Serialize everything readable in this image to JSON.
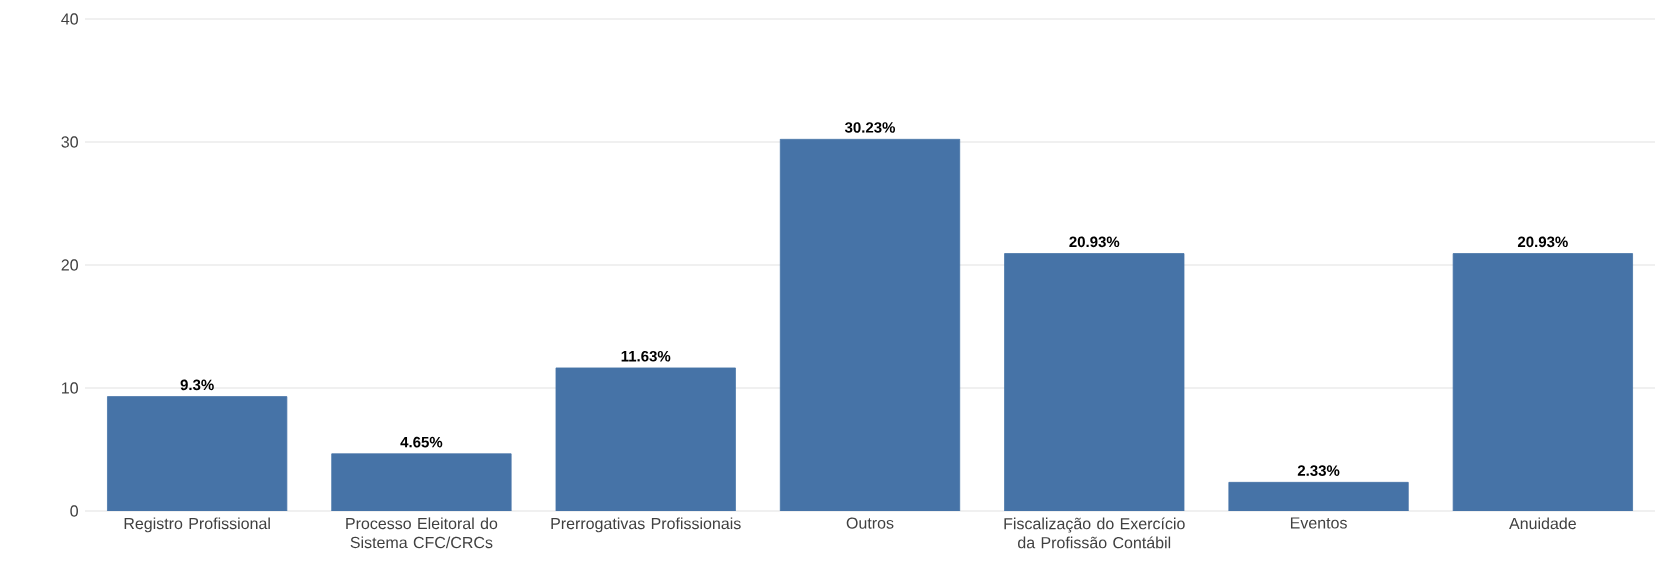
{
  "chart_data": {
    "type": "bar",
    "categories": [
      "Registro Profissional",
      "Processo Eleitoral do Sistema CFC/CRCs",
      "Prerrogativas Profissionais",
      "Outros",
      "Fiscalização do Exercício da Profissão Contábil",
      "Eventos",
      "Anuidade"
    ],
    "values": [
      9.3,
      4.65,
      11.63,
      30.23,
      20.93,
      2.33,
      20.93
    ],
    "value_labels": [
      "9.3%",
      "4.65%",
      "11.63%",
      "30.23%",
      "20.93%",
      "2.33%",
      "20.93%"
    ],
    "color": "#4673a7",
    "ylim": [
      0,
      40
    ],
    "yticks": [
      0,
      10,
      20,
      30,
      40
    ],
    "grid": "y"
  }
}
